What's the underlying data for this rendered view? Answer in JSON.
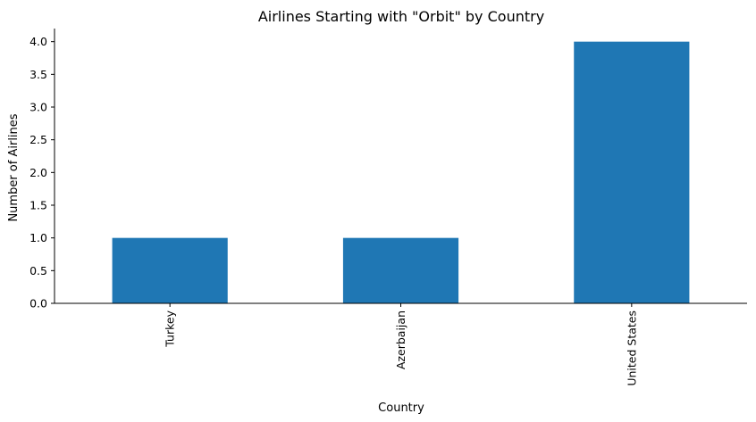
{
  "chart_data": {
    "type": "bar",
    "title": "Airlines Starting with \"Orbit\" by Country",
    "xlabel": "Country",
    "ylabel": "Number of Airlines",
    "categories": [
      "Turkey",
      "Azerbaijan",
      "United States"
    ],
    "values": [
      1,
      1,
      4
    ],
    "ylim": [
      0,
      4.2
    ],
    "yticks": [
      "0.0",
      "0.5",
      "1.0",
      "1.5",
      "2.0",
      "2.5",
      "3.0",
      "3.5",
      "4.0"
    ],
    "grid": false,
    "legend": "none",
    "x_tick_rotation": "vertical",
    "bar_color": "#1f77b4"
  }
}
